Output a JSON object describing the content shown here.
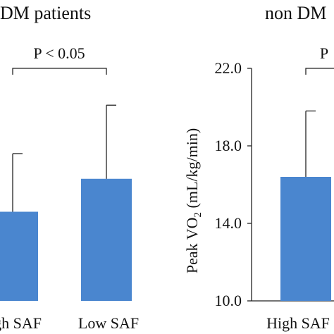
{
  "colors": {
    "bar": "#4a86cf",
    "bar_edge": "#3a74bb",
    "axis": "#222222",
    "text": "#111111"
  },
  "chart_data": [
    {
      "type": "bar",
      "title": "DM patients",
      "categories": [
        "High SAF",
        "Low SAF"
      ],
      "values": [
        14.6,
        16.3
      ],
      "error_plus": [
        3.0,
        3.8
      ],
      "annotation": "P < 0.05",
      "ylim": [
        10.0,
        22.0
      ]
    },
    {
      "type": "bar",
      "title": "non DM",
      "categories": [
        "High SAF"
      ],
      "values": [
        16.4
      ],
      "error_plus": [
        3.4
      ],
      "annotation": "P",
      "ylabel": "Peak VO",
      "ylabel_sub": "2",
      "ylabel_unit": " (mL/kg/min)",
      "yticks": [
        "10.0",
        "14.0",
        "18.0",
        "22.0"
      ],
      "ylim": [
        10.0,
        22.0
      ],
      "grid": false
    }
  ]
}
